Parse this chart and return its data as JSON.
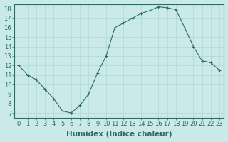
{
  "x": [
    0,
    1,
    2,
    3,
    4,
    5,
    6,
    7,
    8,
    9,
    10,
    11,
    12,
    13,
    14,
    15,
    16,
    17,
    18,
    19,
    20,
    21,
    22,
    23
  ],
  "y": [
    12,
    11,
    10.5,
    9.5,
    8.5,
    7.2,
    7.0,
    7.8,
    9.0,
    11.2,
    13.0,
    16.0,
    16.5,
    17.0,
    17.5,
    17.8,
    18.2,
    18.1,
    17.9,
    16.0,
    14.0,
    12.5,
    12.3,
    11.5
  ],
  "xlabel": "Humidex (Indice chaleur)",
  "ylabel": "",
  "title": "",
  "bg_color": "#caeaea",
  "line_color": "#2e6b5e",
  "marker": "+",
  "xlim": [
    -0.5,
    23.5
  ],
  "ylim": [
    6.5,
    18.5
  ],
  "yticks": [
    7,
    8,
    9,
    10,
    11,
    12,
    13,
    14,
    15,
    16,
    17,
    18
  ],
  "xticks": [
    0,
    1,
    2,
    3,
    4,
    5,
    6,
    7,
    8,
    9,
    10,
    11,
    12,
    13,
    14,
    15,
    16,
    17,
    18,
    19,
    20,
    21,
    22,
    23
  ],
  "grid_color": "#b0d8d4",
  "font_color": "#2e6b5e",
  "font_size": 6,
  "xlabel_fontsize": 7.5
}
